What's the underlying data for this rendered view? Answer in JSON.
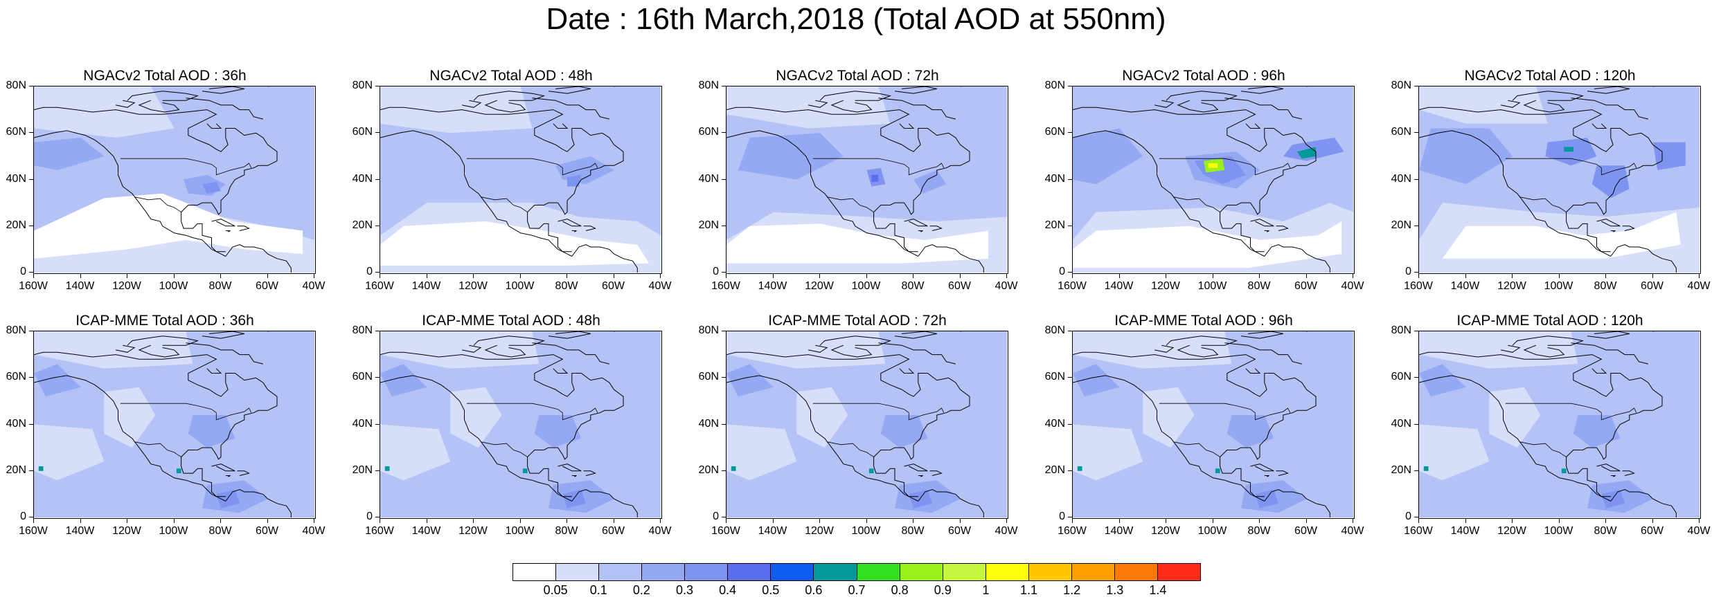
{
  "title": "Date : 16th March,2018 (Total AOD at 550nm)",
  "lat_labels": [
    "80N",
    "60N",
    "40N",
    "20N",
    "0"
  ],
  "lon_labels": [
    "160W",
    "140W",
    "120W",
    "100W",
    "80W",
    "60W",
    "40W"
  ],
  "panels": [
    {
      "title": "NGACv2 Total AOD : 36h",
      "model": "NGACv2",
      "lead": "36h",
      "field": "ngac36"
    },
    {
      "title": "NGACv2 Total AOD : 48h",
      "model": "NGACv2",
      "lead": "48h",
      "field": "ngac48"
    },
    {
      "title": "NGACv2 Total AOD : 72h",
      "model": "NGACv2",
      "lead": "72h",
      "field": "ngac72"
    },
    {
      "title": "NGACv2 Total AOD : 96h",
      "model": "NGACv2",
      "lead": "96h",
      "field": "ngac96"
    },
    {
      "title": "NGACv2 Total AOD : 120h",
      "model": "NGACv2",
      "lead": "120h",
      "field": "ngac120"
    },
    {
      "title": "ICAP-MME Total AOD : 36h",
      "model": "ICAP-MME",
      "lead": "36h",
      "field": "icap"
    },
    {
      "title": "ICAP-MME Total AOD : 48h",
      "model": "ICAP-MME",
      "lead": "48h",
      "field": "icap"
    },
    {
      "title": "ICAP-MME Total AOD : 72h",
      "model": "ICAP-MME",
      "lead": "72h",
      "field": "icap"
    },
    {
      "title": "ICAP-MME Total AOD : 96h",
      "model": "ICAP-MME",
      "lead": "96h",
      "field": "icap"
    },
    {
      "title": "ICAP-MME Total AOD : 120h",
      "model": "ICAP-MME",
      "lead": "120h",
      "field": "icap"
    }
  ],
  "colorbar": {
    "labels": [
      "0.05",
      "0.1",
      "0.2",
      "0.3",
      "0.4",
      "0.5",
      "0.6",
      "0.7",
      "0.8",
      "0.9",
      "1",
      "1.1",
      "1.2",
      "1.3",
      "1.4"
    ],
    "colors": [
      "#ffffff",
      "#d7defa",
      "#b4c2f6",
      "#94a8f4",
      "#7f94f0",
      "#5a6ef0",
      "#0f5cf0",
      "#009999",
      "#33e01f",
      "#99f01a",
      "#c6f53e",
      "#ffff0a",
      "#ffc800",
      "#ffa000",
      "#ff780a",
      "#ff2a18"
    ]
  }
}
